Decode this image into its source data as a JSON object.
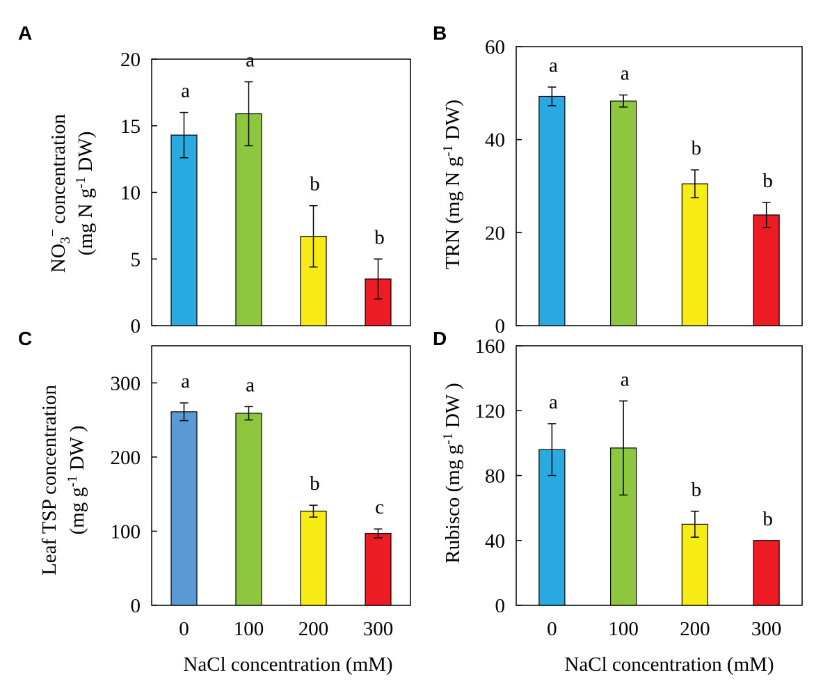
{
  "chart_data": [
    {
      "type": "bar",
      "panel": "A",
      "categories": [
        "0",
        "100",
        "200",
        "300"
      ],
      "values": [
        14.3,
        15.9,
        6.7,
        3.5
      ],
      "errors": [
        1.7,
        2.4,
        2.3,
        1.5
      ],
      "significance": [
        "a",
        "a",
        "b",
        "b"
      ],
      "colors": [
        "#29ABE2",
        "#8DC63F",
        "#F7EC13",
        "#ED1C24"
      ],
      "ylim": [
        0,
        20
      ],
      "yticks": [
        0,
        5,
        10,
        15,
        20
      ],
      "ylabel_line1": "NO",
      "ylabel_sub": "3",
      "ylabel_sup": "−",
      "ylabel_rest": " concentration",
      "ylabel_line2_a": "(mg  N g",
      "ylabel_line2_sup": "-1",
      "ylabel_line2_b": " DW)",
      "xlabel": ""
    },
    {
      "type": "bar",
      "panel": "B",
      "categories": [
        "0",
        "100",
        "200",
        "300"
      ],
      "values": [
        49.3,
        48.3,
        30.5,
        23.8
      ],
      "errors": [
        2.0,
        1.3,
        3.0,
        2.7
      ],
      "significance": [
        "a",
        "a",
        "b",
        "b"
      ],
      "colors": [
        "#29ABE2",
        "#8DC63F",
        "#F7EC13",
        "#ED1C24"
      ],
      "ylim": [
        0,
        60
      ],
      "yticks": [
        0,
        20,
        40,
        60
      ],
      "ylabel_a": "TRN (mg N g",
      "ylabel_sup": "-1",
      "ylabel_b": " DW)",
      "xlabel": ""
    },
    {
      "type": "bar",
      "panel": "C",
      "categories": [
        "0",
        "100",
        "200",
        "300"
      ],
      "values": [
        261,
        259,
        127,
        97
      ],
      "errors": [
        12,
        9,
        8,
        6
      ],
      "significance": [
        "a",
        "a",
        "b",
        "c"
      ],
      "colors": [
        "#5B9BD5",
        "#8DC63F",
        "#F7EC13",
        "#ED1C24"
      ],
      "ylim": [
        0,
        350
      ],
      "yticks": [
        0,
        100,
        200,
        300
      ],
      "ylabel_line1": "Leaf  TSP concentration",
      "ylabel_line2_a": "(mg g",
      "ylabel_line2_sup": "-1",
      "ylabel_line2_b": " DW )",
      "xlabel": "NaCl concentration  (mM)"
    },
    {
      "type": "bar",
      "panel": "D",
      "categories": [
        "0",
        "100",
        "200",
        "300"
      ],
      "values": [
        96,
        97,
        50,
        40
      ],
      "errors": [
        16,
        29,
        8,
        0
      ],
      "significance": [
        "a",
        "a",
        "b",
        "b"
      ],
      "colors": [
        "#29ABE2",
        "#8DC63F",
        "#F7EC13",
        "#ED1C24"
      ],
      "ylim": [
        0,
        160
      ],
      "yticks": [
        0,
        40,
        80,
        120,
        160
      ],
      "ylabel_a": "Rubisco (mg g",
      "ylabel_sup": "-1",
      "ylabel_b": " DW )",
      "xlabel": "NaCl concentration  (mM)"
    }
  ]
}
